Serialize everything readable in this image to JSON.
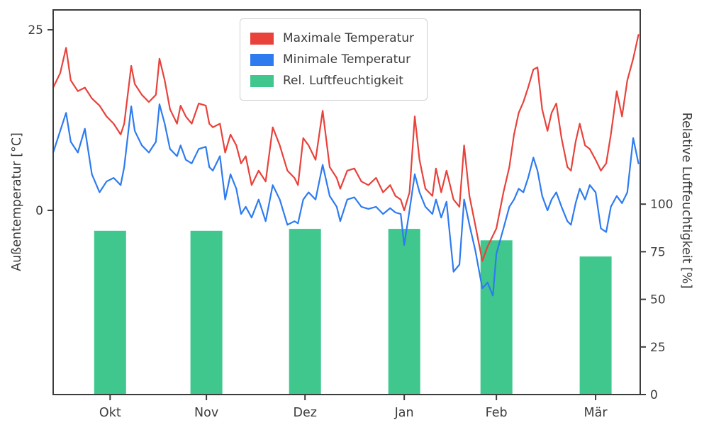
{
  "figure": {
    "background": "#ffffff",
    "spine_color": "#3c3c3c",
    "text_color": "#3c3c3c"
  },
  "legend": {
    "items": [
      {
        "label": "Maximale Temperatur"
      },
      {
        "label": "Minimale Temperatur"
      },
      {
        "label": "Rel. Luftfeuchtigkeit"
      }
    ]
  },
  "chart_data": {
    "type": "line+bar",
    "title": "",
    "left_axis": {
      "label": "Außentemperatur [°C]",
      "ticks": [
        0,
        25
      ],
      "range": [
        -25.5,
        27.75
      ]
    },
    "right_axis": {
      "label": "Relative Luftfeuchtigkeit [%]",
      "ticks": [
        0,
        25,
        50,
        75,
        100
      ],
      "range": [
        0,
        202
      ]
    },
    "x_tick_labels": [
      "Okt",
      "Nov",
      "Dez",
      "Jan",
      "Feb",
      "Mär"
    ],
    "x_tick_pos": [
      0.097,
      0.261,
      0.429,
      0.598,
      0.755,
      0.924
    ],
    "grid": false,
    "legend_position": "upper center",
    "x": [
      0.0,
      0.012,
      0.022,
      0.03,
      0.042,
      0.054,
      0.066,
      0.079,
      0.091,
      0.103,
      0.115,
      0.121,
      0.133,
      0.139,
      0.151,
      0.163,
      0.175,
      0.181,
      0.19,
      0.199,
      0.211,
      0.217,
      0.226,
      0.236,
      0.248,
      0.26,
      0.266,
      0.272,
      0.284,
      0.293,
      0.302,
      0.312,
      0.32,
      0.328,
      0.338,
      0.35,
      0.362,
      0.374,
      0.386,
      0.399,
      0.411,
      0.417,
      0.426,
      0.435,
      0.447,
      0.459,
      0.471,
      0.483,
      0.489,
      0.501,
      0.513,
      0.525,
      0.537,
      0.55,
      0.562,
      0.574,
      0.583,
      0.592,
      0.598,
      0.607,
      0.616,
      0.624,
      0.634,
      0.646,
      0.652,
      0.661,
      0.67,
      0.682,
      0.692,
      0.7,
      0.709,
      0.719,
      0.731,
      0.74,
      0.749,
      0.755,
      0.767,
      0.777,
      0.785,
      0.793,
      0.801,
      0.809,
      0.818,
      0.825,
      0.833,
      0.842,
      0.849,
      0.857,
      0.866,
      0.876,
      0.882,
      0.89,
      0.897,
      0.906,
      0.914,
      0.924,
      0.933,
      0.942,
      0.95,
      0.96,
      0.969,
      0.978,
      0.988,
      0.997
    ],
    "series": [
      {
        "id": "max-temp",
        "name": "Maximale Temperatur",
        "type": "line",
        "axis": "left",
        "unit": "°C",
        "color": "#e8423b",
        "values": [
          17,
          19,
          22.5,
          18,
          16.5,
          17,
          15.5,
          14.5,
          13,
          12,
          10.5,
          12,
          20,
          17.5,
          16,
          15,
          16,
          21,
          18,
          14,
          12,
          14.5,
          13,
          12,
          14.8,
          14.5,
          12,
          11.5,
          12,
          8,
          10.5,
          9,
          6.5,
          7.5,
          3.5,
          5.5,
          4,
          11.5,
          9,
          5.5,
          4.5,
          3.5,
          10,
          9,
          7,
          13.8,
          6,
          4.5,
          3,
          5.5,
          5.8,
          4,
          3.5,
          4.5,
          2.5,
          3.5,
          2,
          1.5,
          0,
          2.5,
          13,
          7,
          3,
          2,
          5.8,
          2.5,
          5.5,
          1.5,
          0.5,
          9,
          2,
          -2,
          -7,
          -5,
          -3.5,
          -2.5,
          2.5,
          6,
          10.5,
          13.5,
          15,
          17,
          19.5,
          19.8,
          14,
          11,
          13.5,
          14.8,
          10,
          6,
          5.5,
          9.5,
          12,
          9,
          8.5,
          7,
          5.5,
          6.5,
          10.5,
          16.5,
          13,
          18,
          21,
          24.3
        ]
      },
      {
        "id": "min-temp",
        "name": "Minimale Temperatur",
        "type": "line",
        "axis": "left",
        "unit": "°C",
        "color": "#2e7bf0",
        "values": [
          8,
          11,
          13.5,
          9.5,
          8,
          11.3,
          5,
          2.5,
          4,
          4.5,
          3.5,
          6,
          14.4,
          11,
          9,
          8,
          9.5,
          14.7,
          12,
          8.5,
          7.5,
          9,
          7,
          6.5,
          8.5,
          8.8,
          6,
          5.5,
          7.5,
          1.5,
          5,
          3,
          -0.5,
          0.5,
          -1,
          1.5,
          -1.5,
          3.5,
          1.5,
          -2,
          -1.5,
          -1.8,
          1.5,
          2.5,
          1.5,
          6.3,
          2,
          0.5,
          -1.5,
          1.5,
          1.8,
          0.5,
          0.2,
          0.5,
          -0.5,
          0.3,
          -0.3,
          -0.5,
          -4.8,
          0,
          5,
          2.5,
          0.5,
          -0.5,
          1.5,
          -1,
          1.2,
          -8.5,
          -7.5,
          1.5,
          -2,
          -5.5,
          -10.8,
          -10,
          -11.8,
          -6,
          -2.5,
          0.5,
          1.5,
          3,
          2.5,
          4.5,
          7.3,
          5.5,
          2,
          0,
          1.5,
          2.5,
          0.5,
          -1.5,
          -2,
          1,
          3,
          1.5,
          3.5,
          2.5,
          -2.5,
          -3,
          0.5,
          2,
          1,
          2.5,
          10,
          6.5
        ]
      },
      {
        "id": "humidity",
        "name": "Rel. Luftfeuchtigkeit",
        "type": "bar",
        "axis": "right",
        "unit": "%",
        "color": "#3fc78d",
        "x": [
          0.097,
          0.261,
          0.429,
          0.598,
          0.755,
          0.924
        ],
        "bar_width": 0.0543,
        "values": [
          86,
          86,
          87,
          87,
          81,
          72.5
        ]
      }
    ]
  }
}
